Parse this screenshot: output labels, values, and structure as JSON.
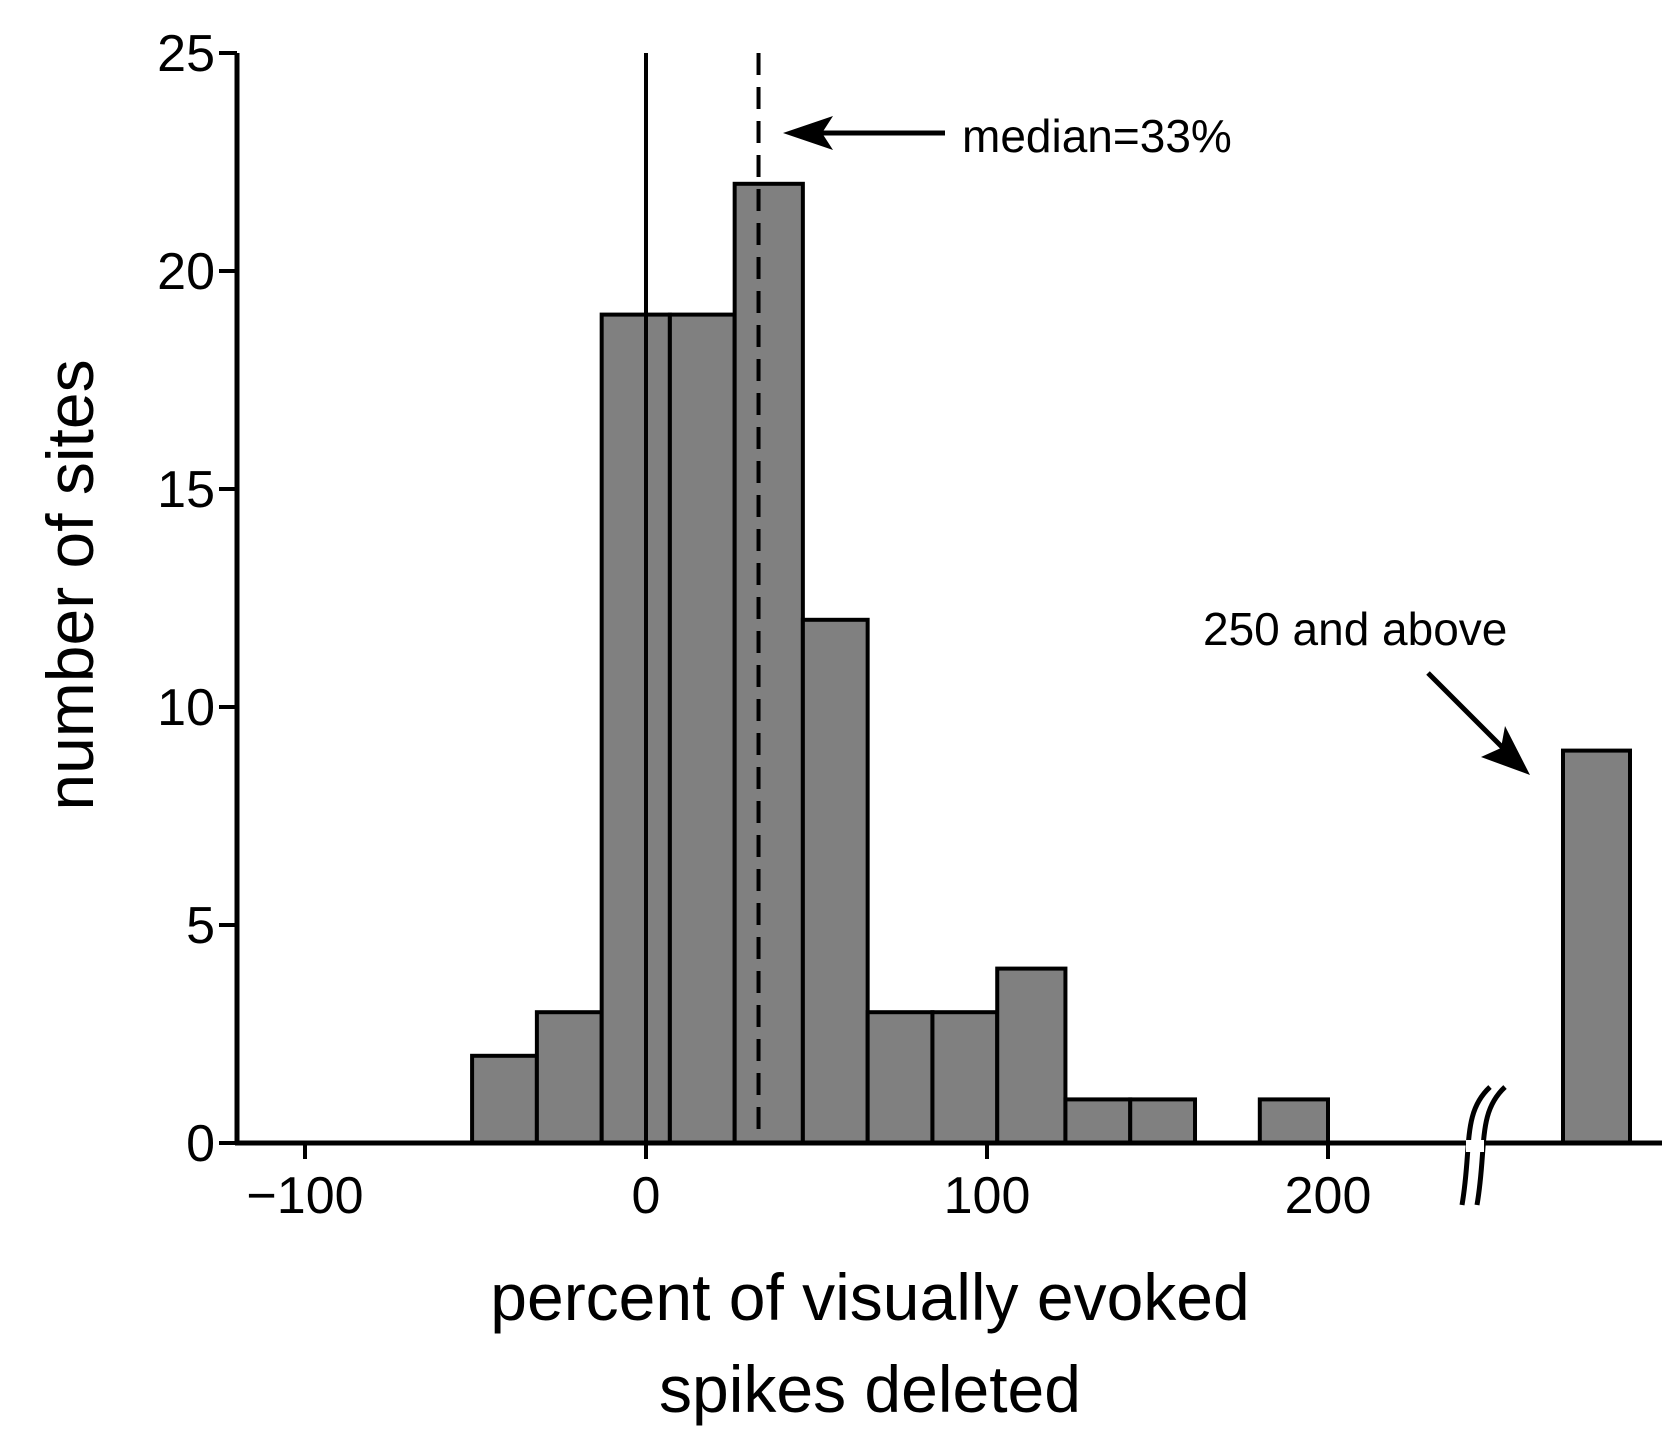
{
  "chart_data": {
    "type": "bar",
    "title": "",
    "xlabel_lines": [
      "percent of visually evoked",
      "spikes deleted"
    ],
    "ylabel": "number of sites",
    "xlim": [
      -110,
      300
    ],
    "ylim": [
      0,
      25
    ],
    "x_ticks": [
      -100,
      0,
      100,
      200
    ],
    "x_tick_labels": [
      "−100",
      "0",
      "100",
      "200"
    ],
    "y_ticks": [
      0,
      5,
      10,
      15,
      20,
      25
    ],
    "y_tick_labels": [
      "0",
      "5",
      "10",
      "15",
      "20",
      "25"
    ],
    "bins": [
      {
        "start": -51,
        "end": -32,
        "count": 2
      },
      {
        "start": -32,
        "end": -13,
        "count": 3
      },
      {
        "start": -13,
        "end": 7,
        "count": 19
      },
      {
        "start": 7,
        "end": 26,
        "count": 19
      },
      {
        "start": 26,
        "end": 46,
        "count": 22
      },
      {
        "start": 46,
        "end": 65,
        "count": 12
      },
      {
        "start": 65,
        "end": 84,
        "count": 3
      },
      {
        "start": 84,
        "end": 103,
        "count": 3
      },
      {
        "start": 103,
        "end": 123,
        "count": 4
      },
      {
        "start": 123,
        "end": 142,
        "count": 1
      },
      {
        "start": 142,
        "end": 161,
        "count": 1
      },
      {
        "start": 180,
        "end": 200,
        "count": 1
      }
    ],
    "overflow_bin": {
      "label": "250 and above",
      "count": 9
    },
    "reference_lines": [
      {
        "x": 0,
        "style": "solid",
        "top": 25
      },
      {
        "x": 33,
        "style": "dashed",
        "top": 25,
        "label": "median=33%"
      }
    ],
    "axis_break": true,
    "grid": false,
    "bar_color": "#808080"
  }
}
